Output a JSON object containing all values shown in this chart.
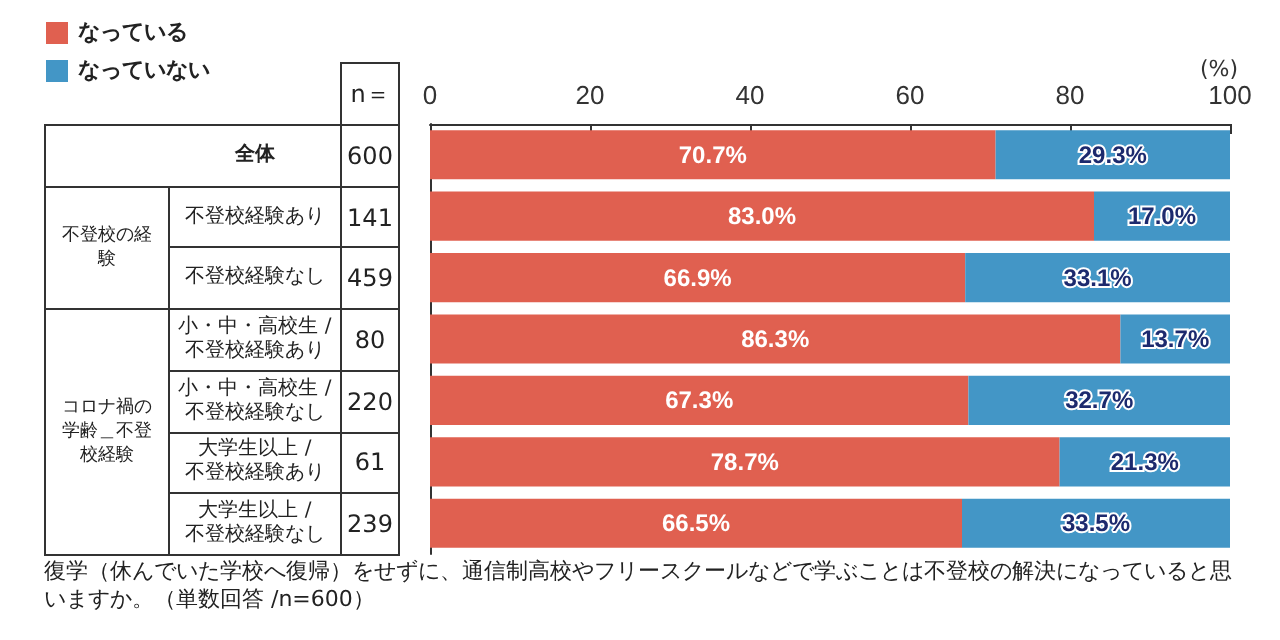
{
  "chart_data": {
    "type": "bar",
    "orientation": "horizontal",
    "stacked": true,
    "xlabel": "(%)",
    "categories": [
      "全体",
      "不登校経験あり",
      "不登校経験なし",
      "小・中・高校生 / 不登校経験あり",
      "小・中・高校生 / 不登校経験なし",
      "大学生以上 / 不登校経験あり",
      "大学生以上 / 不登校経験なし"
    ],
    "series": [
      {
        "name": "なっている",
        "color": "#e06050",
        "values": [
          70.7,
          83.0,
          66.9,
          86.3,
          67.3,
          78.7,
          66.5
        ],
        "value_labels": [
          "70.7%",
          "83.0%",
          "66.9%",
          "86.3%",
          "67.3%",
          "78.7%",
          "66.5%"
        ]
      },
      {
        "name": "なっていない",
        "color": "#4396c6",
        "values": [
          29.3,
          17.0,
          33.1,
          13.7,
          32.7,
          21.3,
          33.5
        ],
        "value_labels": [
          "29.3%",
          "17.0%",
          "33.1%",
          "13.7%",
          "32.7%",
          "21.3%",
          "33.5%"
        ]
      }
    ],
    "xlim": [
      0,
      100
    ],
    "xticks": [
      0,
      20,
      40,
      60,
      80,
      100
    ],
    "legend": "top left",
    "grid": false,
    "annotations": [
      "n＝",
      "600",
      "141",
      "459",
      "80",
      "220",
      "61",
      "239",
      "不登校の経験",
      "コロナ禍の学齢＿不登校経験",
      "復学（休んでいた学校へ復帰）をせずに、通信制高校やフリースクールなどで学ぶことは不登校の解決になっていると思いますか。（単数回答 /n=600）"
    ]
  }
}
